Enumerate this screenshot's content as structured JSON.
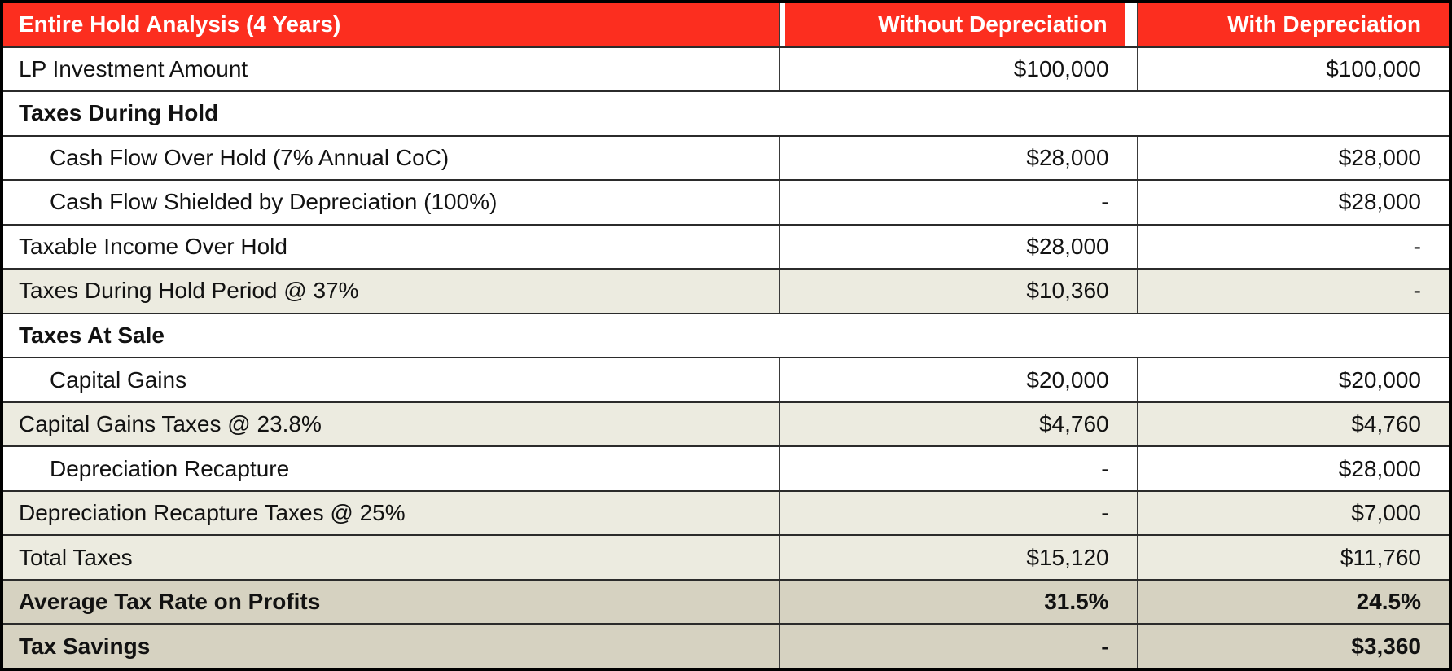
{
  "chart_data": {
    "type": "table",
    "title": "Entire Hold Analysis (4 Years)",
    "columns": [
      "Entire Hold Analysis (4 Years)",
      "Without Depreciation",
      "With Depreciation"
    ],
    "rows": [
      {
        "label": "LP Investment Amount",
        "without": "$100,000",
        "with": "$100,000"
      },
      {
        "label": "Taxes During Hold",
        "without": "",
        "with": ""
      },
      {
        "label": "Cash Flow Over Hold (7% Annual CoC)",
        "without": "$28,000",
        "with": "$28,000"
      },
      {
        "label": "Cash Flow Shielded by Depreciation (100%)",
        "without": "-",
        "with": "$28,000"
      },
      {
        "label": "Taxable Income Over Hold",
        "without": "$28,000",
        "with": "-"
      },
      {
        "label": "Taxes During Hold Period @ 37%",
        "without": "$10,360",
        "with": "-"
      },
      {
        "label": "Taxes At Sale",
        "without": "",
        "with": ""
      },
      {
        "label": "Capital Gains",
        "without": "$20,000",
        "with": "$20,000"
      },
      {
        "label": "Capital Gains Taxes @ 23.8%",
        "without": "$4,760",
        "with": "$4,760"
      },
      {
        "label": "Depreciation Recapture",
        "without": "-",
        "with": "$28,000"
      },
      {
        "label": "Depreciation Recapture Taxes @ 25%",
        "without": "-",
        "with": "$7,000"
      },
      {
        "label": "Total Taxes",
        "without": "$15,120",
        "with": "$11,760"
      },
      {
        "label": "Average Tax Rate on Profits",
        "without": "31.5%",
        "with": "24.5%"
      },
      {
        "label": "Tax Savings",
        "without": "-",
        "with": "$3,360"
      }
    ],
    "colors": {
      "header_red": "#fc2e1f",
      "row_beige": "#ecebe0",
      "row_tan": "#d6d2c1",
      "border": "#000000",
      "text": "#121212",
      "header_text": "#ffffff"
    },
    "layout": {
      "section_rows": [
        1,
        6
      ],
      "indented_rows": [
        2,
        3,
        7,
        9
      ],
      "bold_rows": [
        12,
        13
      ]
    }
  }
}
